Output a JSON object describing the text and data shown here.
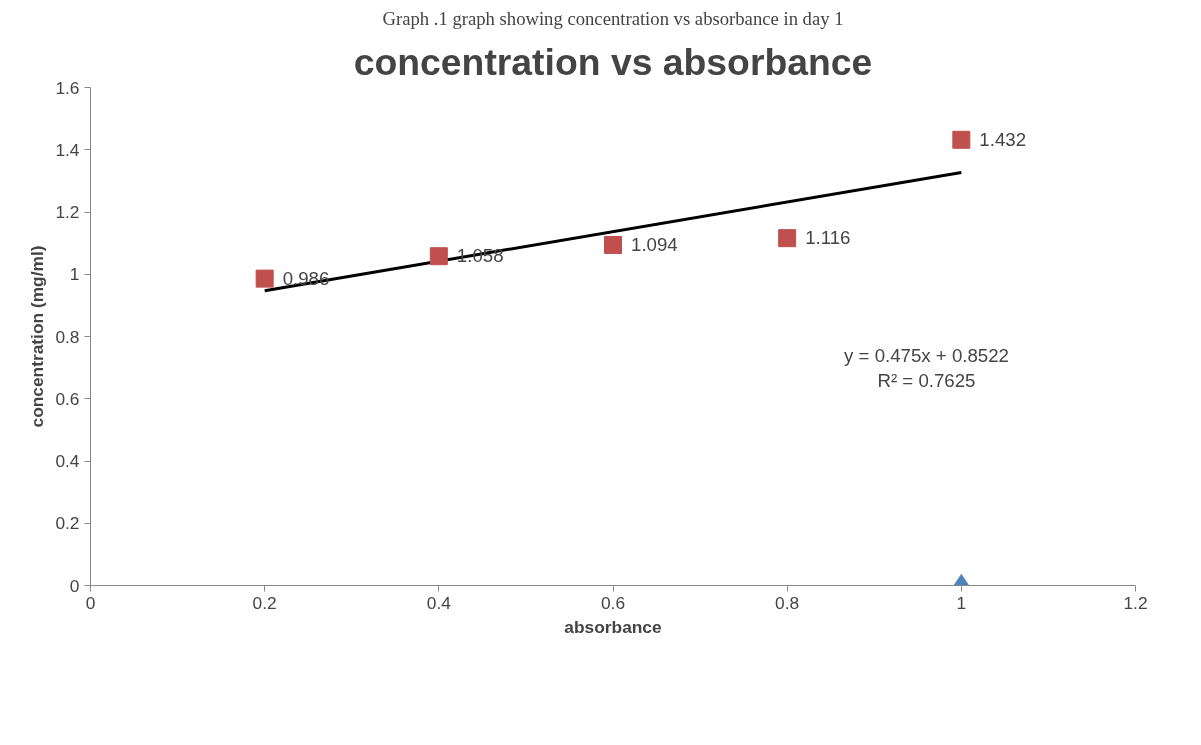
{
  "chart_data": {
    "type": "scatter",
    "title": "concentration vs absorbance",
    "subtitle": "Graph .1 graph showing concentration vs absorbance in day 1",
    "xlabel": "absorbance",
    "ylabel": "concentration (mg/ml)",
    "xlim": [
      0,
      1.2
    ],
    "xticks": [
      0,
      0.2,
      0.4,
      0.6,
      0.8,
      1,
      1.2
    ],
    "ylim": [
      0,
      1.6
    ],
    "yticks": [
      0,
      0.2,
      0.4,
      0.6,
      0.8,
      1,
      1.2,
      1.4,
      1.6
    ],
    "grid": false,
    "series": [
      {
        "marker": "diamond",
        "color": "#4f81bd",
        "x": [
          1
        ],
        "values": [
          0
        ]
      },
      {
        "marker": "square",
        "color": "#c0504d",
        "x": [
          0.2,
          0.4,
          0.6,
          0.8,
          1
        ],
        "values": [
          0.986,
          1.058,
          1.094,
          1.116,
          1.432
        ],
        "value_labels": [
          "0.986",
          "1.058",
          "1.094",
          "1.116",
          "1.432"
        ]
      },
      {
        "type": "line",
        "color": "#000000",
        "x": [
          0.2,
          1
        ],
        "values": [
          0.947,
          1.327
        ],
        "line_style": "solid"
      }
    ],
    "annotations": [
      "y = 0.475x + 0.8522\nR² = 0.7625"
    ]
  }
}
